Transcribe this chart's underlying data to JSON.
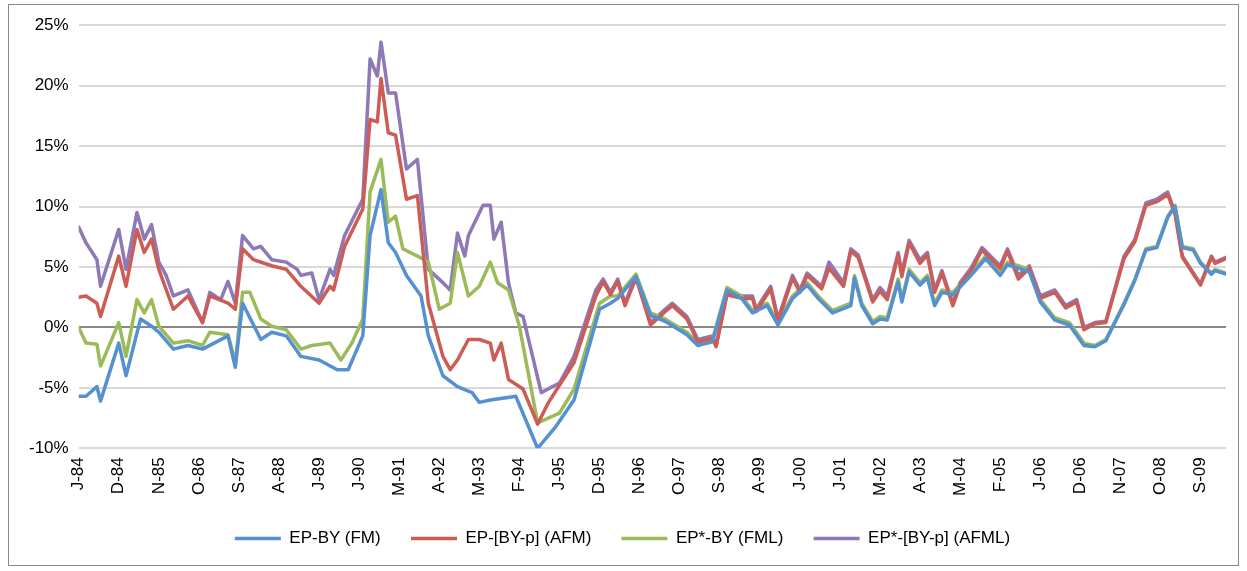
{
  "chart_data": {
    "type": "line",
    "xlim": [
      "1984-01",
      "2010-04"
    ],
    "ylim": [
      -10,
      25
    ],
    "yticks": [
      {
        "value": -10,
        "label": "-10%"
      },
      {
        "value": -5,
        "label": "-5%"
      },
      {
        "value": 0,
        "label": "0%"
      },
      {
        "value": 5,
        "label": "5%"
      },
      {
        "value": 10,
        "label": "10%"
      },
      {
        "value": 15,
        "label": "15%"
      },
      {
        "value": 20,
        "label": "20%"
      },
      {
        "value": 25,
        "label": "25%"
      }
    ],
    "xticks": [
      {
        "value": "1984-01",
        "label": "J-84"
      },
      {
        "value": "1984-12",
        "label": "D-84"
      },
      {
        "value": "1985-11",
        "label": "N-85"
      },
      {
        "value": "1986-10",
        "label": "O-86"
      },
      {
        "value": "1987-09",
        "label": "S-87"
      },
      {
        "value": "1988-08",
        "label": "A-88"
      },
      {
        "value": "1989-07",
        "label": "J-89"
      },
      {
        "value": "1990-06",
        "label": "J-90"
      },
      {
        "value": "1991-05",
        "label": "M-91"
      },
      {
        "value": "1992-04",
        "label": "A-92"
      },
      {
        "value": "1993-03",
        "label": "M-93"
      },
      {
        "value": "1994-02",
        "label": "F-94"
      },
      {
        "value": "1995-01",
        "label": "J-95"
      },
      {
        "value": "1995-12",
        "label": "D-95"
      },
      {
        "value": "1996-11",
        "label": "N-96"
      },
      {
        "value": "1997-10",
        "label": "O-97"
      },
      {
        "value": "1998-09",
        "label": "S-98"
      },
      {
        "value": "1999-08",
        "label": "A-99"
      },
      {
        "value": "2000-07",
        "label": "J-00"
      },
      {
        "value": "2001-06",
        "label": "J-01"
      },
      {
        "value": "2002-05",
        "label": "M-02"
      },
      {
        "value": "2003-04",
        "label": "A-03"
      },
      {
        "value": "2004-03",
        "label": "M-04"
      },
      {
        "value": "2005-02",
        "label": "F-05"
      },
      {
        "value": "2006-01",
        "label": "J-06"
      },
      {
        "value": "2006-12",
        "label": "D-06"
      },
      {
        "value": "2007-11",
        "label": "N-07"
      },
      {
        "value": "2008-10",
        "label": "O-08"
      },
      {
        "value": "2009-09",
        "label": "S-09"
      }
    ],
    "grid": "y",
    "legend": "bottom",
    "series": [
      {
        "name": "EP-BY (FM)",
        "color": "#5590d0",
        "x": [
          "1984-01",
          "1984-03",
          "1984-06",
          "1984-07",
          "1984-12",
          "1985-02",
          "1985-06",
          "1985-09",
          "1985-11",
          "1986-03",
          "1986-07",
          "1986-11",
          "1987-06",
          "1987-08",
          "1987-10",
          "1988-03",
          "1988-06",
          "1988-10",
          "1989-02",
          "1989-07",
          "1989-12",
          "1990-03",
          "1990-07",
          "1990-09",
          "1990-12",
          "1991-02",
          "1991-04",
          "1991-07",
          "1991-11",
          "1992-01",
          "1992-05",
          "1992-09",
          "1993-01",
          "1993-03",
          "1993-06",
          "1994-01",
          "1994-07",
          "1994-12",
          "1995-05",
          "1995-12",
          "1996-03",
          "1996-05",
          "1996-10",
          "1997-02",
          "1997-06",
          "1997-12",
          "1998-03",
          "1998-07",
          "1998-11",
          "1999-03",
          "1999-06",
          "1999-10",
          "2000-01",
          "2000-05",
          "2000-09",
          "2000-12",
          "2001-04",
          "2001-09",
          "2001-10",
          "2001-12",
          "2002-03",
          "2002-05",
          "2002-07",
          "2002-10",
          "2002-11",
          "2003-01",
          "2003-04",
          "2003-06",
          "2003-08",
          "2003-10",
          "2004-01",
          "2004-06",
          "2004-10",
          "2005-02",
          "2005-04",
          "2005-10",
          "2006-01",
          "2006-05",
          "2006-09",
          "2007-01",
          "2007-04",
          "2007-07",
          "2007-12",
          "2008-03",
          "2008-06",
          "2008-09",
          "2008-12",
          "2009-02",
          "2009-04",
          "2009-07",
          "2009-09",
          "2009-12",
          "2010-01",
          "2010-04"
        ],
        "values": [
          -5.7,
          -5.7,
          -4.9,
          -6.1,
          -1.3,
          -4.0,
          0.7,
          0.1,
          -0.4,
          -1.8,
          -1.5,
          -1.8,
          -0.7,
          -3.3,
          2.0,
          -1.0,
          -0.4,
          -0.7,
          -2.4,
          -2.7,
          -3.5,
          -3.5,
          -0.7,
          7.6,
          11.4,
          7.0,
          6.2,
          4.3,
          2.6,
          -0.7,
          -4.0,
          -4.9,
          -5.4,
          -6.2,
          -6.0,
          -5.7,
          -10.0,
          -8.2,
          -6.0,
          1.5,
          2.0,
          2.4,
          4.2,
          1.0,
          0.5,
          -0.6,
          -1.5,
          -1.2,
          3.1,
          2.4,
          1.2,
          1.8,
          0.2,
          2.4,
          3.5,
          2.4,
          1.2,
          1.8,
          4.1,
          1.8,
          0.3,
          0.7,
          0.6,
          3.8,
          2.1,
          4.6,
          3.5,
          4.1,
          1.8,
          2.9,
          2.7,
          4.3,
          5.7,
          4.3,
          5.2,
          4.6,
          2.1,
          0.6,
          0.2,
          -1.5,
          -1.6,
          -1.1,
          1.9,
          3.9,
          6.4,
          6.6,
          9.1,
          10.0,
          6.6,
          6.4,
          5.3,
          4.4,
          4.7,
          4.4
        ]
      },
      {
        "name": "EP-[BY-p] (AFM)",
        "color": "#cd5c55",
        "x": [
          "1984-01",
          "1984-03",
          "1984-06",
          "1984-07",
          "1984-12",
          "1985-02",
          "1985-05",
          "1985-07",
          "1985-09",
          "1985-11",
          "1986-03",
          "1986-07",
          "1986-11",
          "1987-01",
          "1987-06",
          "1987-08",
          "1987-10",
          "1988-01",
          "1988-06",
          "1988-10",
          "1989-02",
          "1989-07",
          "1989-10",
          "1989-11",
          "1990-02",
          "1990-07",
          "1990-09",
          "1990-11",
          "1990-12",
          "1991-02",
          "1991-04",
          "1991-07",
          "1991-10",
          "1992-01",
          "1992-05",
          "1992-07",
          "1992-09",
          "1992-12",
          "1993-03",
          "1993-06",
          "1993-07",
          "1993-09",
          "1993-11",
          "1994-03",
          "1994-07",
          "1994-10",
          "1995-05",
          "1995-11",
          "1996-01",
          "1996-03",
          "1996-05",
          "1996-07",
          "1996-10",
          "1997-02",
          "1997-06",
          "1997-08",
          "1997-12",
          "1998-03",
          "1998-07",
          "1998-08",
          "1998-11",
          "1999-03",
          "1999-06",
          "1999-07",
          "1999-11",
          "2000-01",
          "2000-05",
          "2000-07",
          "2000-09",
          "2001-01",
          "2001-03",
          "2001-07",
          "2001-09",
          "2001-11",
          "2002-03",
          "2002-05",
          "2002-07",
          "2002-10",
          "2002-11",
          "2003-01",
          "2003-04",
          "2003-06",
          "2003-08",
          "2003-10",
          "2004-01",
          "2004-03",
          "2004-06",
          "2004-09",
          "2005-02",
          "2005-04",
          "2005-07",
          "2005-10",
          "2006-01",
          "2006-05",
          "2006-08",
          "2006-11",
          "2007-01",
          "2007-04",
          "2007-07",
          "2007-12",
          "2008-03",
          "2008-06",
          "2008-09",
          "2008-12",
          "2009-02",
          "2009-04",
          "2009-09",
          "2009-12",
          "2010-01",
          "2010-04"
        ],
        "values": [
          2.5,
          2.6,
          2.0,
          0.9,
          5.9,
          3.4,
          8.1,
          6.2,
          7.3,
          4.8,
          1.5,
          2.6,
          0.4,
          2.6,
          2.0,
          1.5,
          6.5,
          5.6,
          5.1,
          4.8,
          3.4,
          2.0,
          3.4,
          3.1,
          6.7,
          9.8,
          17.2,
          17.0,
          20.6,
          16.1,
          15.9,
          10.6,
          10.9,
          2.0,
          -2.4,
          -3.5,
          -2.7,
          -1.0,
          -1.0,
          -1.3,
          -2.7,
          -1.3,
          -4.3,
          -5.1,
          -8.0,
          -6.2,
          -2.9,
          2.6,
          3.8,
          2.7,
          3.8,
          1.8,
          4.1,
          0.2,
          1.3,
          1.8,
          0.7,
          -1.2,
          -0.9,
          -1.6,
          2.7,
          2.4,
          2.4,
          1.3,
          3.2,
          0.5,
          4.1,
          2.9,
          4.3,
          3.2,
          4.9,
          3.4,
          6.3,
          5.8,
          2.1,
          3.0,
          2.3,
          6.0,
          4.2,
          7.0,
          5.3,
          6.0,
          2.9,
          4.5,
          1.8,
          3.5,
          4.7,
          6.4,
          4.9,
          6.3,
          4.0,
          4.9,
          2.4,
          2.9,
          1.6,
          2.1,
          -0.2,
          0.3,
          0.4,
          5.7,
          7.1,
          10.1,
          10.4,
          11.0,
          9.4,
          5.8,
          3.5,
          5.8,
          5.3,
          5.7
        ]
      },
      {
        "name": "EP*-BY (FML)",
        "color": "#9bbb59",
        "x": [
          "1984-01",
          "1984-03",
          "1984-06",
          "1984-07",
          "1984-12",
          "1985-02",
          "1985-05",
          "1985-07",
          "1985-09",
          "1985-11",
          "1986-03",
          "1986-07",
          "1986-11",
          "1987-01",
          "1987-06",
          "1987-08",
          "1987-10",
          "1987-12",
          "1988-03",
          "1988-06",
          "1988-10",
          "1989-02",
          "1989-05",
          "1989-10",
          "1990-01",
          "1990-04",
          "1990-07",
          "1990-09",
          "1990-12",
          "1991-02",
          "1991-04",
          "1991-06",
          "1991-10",
          "1992-01",
          "1992-04",
          "1992-07",
          "1992-09",
          "1992-12",
          "1993-03",
          "1993-06",
          "1993-08",
          "1993-11",
          "1994-02",
          "1994-07",
          "1995-01",
          "1995-05",
          "1995-12",
          "1996-03",
          "1996-05",
          "1996-10",
          "1997-02",
          "1997-06",
          "1997-12",
          "1998-03",
          "1998-07",
          "1998-11",
          "1999-03",
          "1999-06",
          "1999-10",
          "2000-01",
          "2000-05",
          "2000-09",
          "2000-12",
          "2001-04",
          "2001-09",
          "2001-10",
          "2001-12",
          "2002-03",
          "2002-05",
          "2002-07",
          "2002-10",
          "2002-11",
          "2003-01",
          "2003-04",
          "2003-06",
          "2003-08",
          "2003-10",
          "2004-01",
          "2004-06",
          "2004-10",
          "2005-02",
          "2005-04",
          "2005-10",
          "2006-01",
          "2006-05",
          "2006-09",
          "2007-01",
          "2007-04",
          "2007-07",
          "2007-12",
          "2008-03",
          "2008-06",
          "2008-09",
          "2008-12",
          "2009-02",
          "2009-04",
          "2009-07",
          "2009-09",
          "2009-12",
          "2010-01",
          "2010-04"
        ],
        "values": [
          0.0,
          -1.3,
          -1.4,
          -3.2,
          0.4,
          -2.4,
          2.3,
          1.2,
          2.3,
          0.1,
          -1.3,
          -1.1,
          -1.5,
          -0.4,
          -0.6,
          -2.9,
          2.9,
          2.9,
          0.7,
          0.1,
          -0.2,
          -1.8,
          -1.5,
          -1.3,
          -2.7,
          -1.3,
          0.7,
          11.2,
          13.9,
          8.7,
          9.2,
          6.5,
          5.9,
          5.4,
          1.5,
          2.0,
          6.2,
          2.6,
          3.4,
          5.4,
          3.7,
          3.1,
          0.1,
          -7.9,
          -7.1,
          -5.1,
          2.0,
          2.6,
          2.6,
          4.4,
          1.2,
          0.7,
          -0.4,
          -1.3,
          -1.0,
          3.3,
          2.6,
          1.4,
          2.0,
          0.4,
          2.6,
          3.7,
          2.6,
          1.4,
          2.0,
          4.3,
          2.0,
          0.5,
          0.9,
          0.8,
          4.0,
          2.3,
          4.8,
          3.7,
          4.3,
          2.0,
          3.1,
          2.9,
          4.5,
          5.9,
          4.5,
          5.4,
          4.8,
          2.3,
          0.8,
          0.4,
          -1.3,
          -1.5,
          -1.0,
          2.0,
          4.0,
          6.5,
          6.7,
          9.2,
          10.1,
          6.7,
          6.5,
          5.4,
          4.5,
          4.8,
          4.5
        ]
      },
      {
        "name": "EP*-[BY-p] (AFML)",
        "color": "#8e78b5",
        "x": [
          "1984-01",
          "1984-03",
          "1984-06",
          "1984-07",
          "1984-12",
          "1985-02",
          "1985-05",
          "1985-07",
          "1985-09",
          "1985-11",
          "1986-01",
          "1986-03",
          "1986-07",
          "1986-11",
          "1987-01",
          "1987-04",
          "1987-06",
          "1987-08",
          "1987-10",
          "1988-01",
          "1988-03",
          "1988-06",
          "1988-10",
          "1989-01",
          "1989-02",
          "1989-05",
          "1989-07",
          "1989-10",
          "1989-11",
          "1990-02",
          "1990-07",
          "1990-09",
          "1990-11",
          "1990-12",
          "1991-02",
          "1991-04",
          "1991-07",
          "1991-10",
          "1992-01",
          "1992-05",
          "1992-07",
          "1992-09",
          "1992-11",
          "1992-12",
          "1993-04",
          "1993-06",
          "1993-07",
          "1993-09",
          "1993-11",
          "1994-01",
          "1994-03",
          "1994-08",
          "1995-01",
          "1995-05",
          "1995-11",
          "1996-01",
          "1996-03",
          "1996-05",
          "1996-07",
          "1996-10",
          "1997-02",
          "1997-06",
          "1997-08",
          "1997-12",
          "1998-03",
          "1998-07",
          "1998-08",
          "1998-11",
          "1999-03",
          "1999-06",
          "1999-07",
          "1999-11",
          "2000-01",
          "2000-05",
          "2000-07",
          "2000-09",
          "2001-01",
          "2001-03",
          "2001-07",
          "2001-09",
          "2001-11",
          "2002-03",
          "2002-05",
          "2002-07",
          "2002-10",
          "2002-11",
          "2003-01",
          "2003-04",
          "2003-06",
          "2003-08",
          "2003-10",
          "2004-01",
          "2004-03",
          "2004-06",
          "2004-09",
          "2005-02",
          "2005-04",
          "2005-07",
          "2005-10",
          "2006-01",
          "2006-05",
          "2006-08",
          "2006-11",
          "2007-01",
          "2007-04",
          "2007-07",
          "2007-12",
          "2008-03",
          "2008-06",
          "2008-09",
          "2008-12",
          "2009-02",
          "2009-04",
          "2009-09",
          "2009-12",
          "2010-01",
          "2010-04"
        ],
        "values": [
          8.3,
          7.0,
          5.6,
          3.4,
          8.1,
          4.8,
          9.5,
          7.3,
          8.5,
          5.4,
          4.3,
          2.6,
          3.1,
          0.4,
          2.9,
          2.3,
          3.8,
          2.0,
          7.6,
          6.5,
          6.7,
          5.6,
          5.4,
          4.8,
          4.3,
          4.5,
          2.3,
          4.8,
          4.3,
          7.6,
          10.6,
          22.2,
          20.8,
          23.6,
          19.4,
          19.4,
          13.1,
          13.9,
          4.8,
          3.7,
          3.1,
          7.8,
          5.9,
          7.6,
          10.1,
          10.1,
          7.3,
          8.7,
          3.7,
          1.2,
          0.9,
          -5.4,
          -4.6,
          -2.4,
          3.1,
          4.0,
          2.9,
          4.0,
          2.0,
          4.3,
          0.4,
          1.5,
          2.0,
          0.9,
          -1.0,
          -0.7,
          -1.5,
          2.9,
          2.6,
          2.6,
          1.5,
          3.4,
          0.7,
          4.3,
          3.1,
          4.5,
          3.4,
          5.4,
          3.7,
          6.5,
          6.0,
          2.3,
          3.3,
          2.6,
          6.2,
          4.5,
          7.2,
          5.6,
          6.2,
          3.1,
          4.7,
          2.0,
          3.7,
          4.9,
          6.6,
          5.1,
          6.5,
          4.3,
          5.1,
          2.6,
          3.1,
          1.8,
          2.3,
          0.0,
          0.4,
          0.5,
          5.9,
          7.3,
          10.3,
          10.6,
          11.2,
          9.5,
          5.9,
          3.6,
          5.9,
          5.4,
          5.8
        ]
      }
    ]
  }
}
